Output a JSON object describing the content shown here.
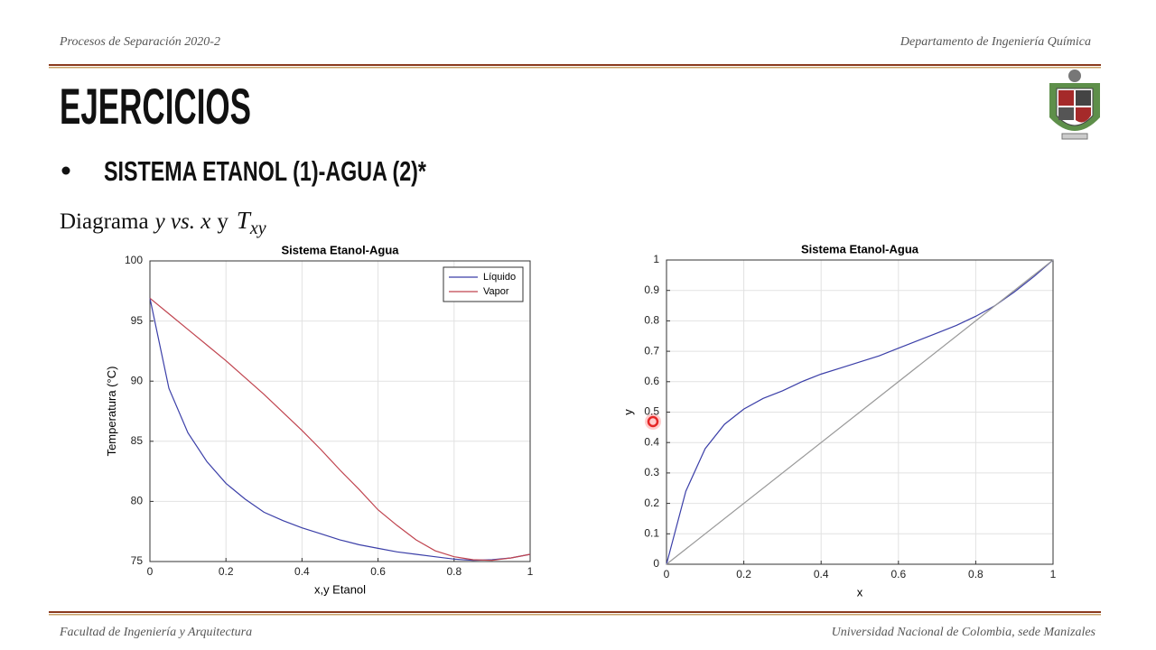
{
  "header": {
    "left": "Procesos de Separación 2020-2",
    "right": "Departamento de Ingeniería Química"
  },
  "title": "EJERCICIOS",
  "bullet": "SISTEMA ETANOL (1)-AGUA (2)*",
  "subtitle": {
    "text": "Diagrama",
    "math1": "y vs. x",
    "joiner": "y",
    "symbol": "T",
    "subscript": "xy"
  },
  "footer": {
    "left": "Facultad de Ingeniería y Arquitectura",
    "right": "Universidad Nacional de Colombia, sede Manizales"
  },
  "chart_data": [
    {
      "type": "line",
      "title": "Sistema Etanol-Agua",
      "xlabel": "x,y Etanol",
      "ylabel": "Temperatura (°C)",
      "x": [
        0,
        0.05,
        0.1,
        0.15,
        0.2,
        0.25,
        0.3,
        0.35,
        0.4,
        0.45,
        0.5,
        0.55,
        0.6,
        0.65,
        0.7,
        0.75,
        0.8,
        0.85,
        0.9,
        0.95,
        1
      ],
      "series": [
        {
          "name": "Líquido",
          "color": "#3b3fa8",
          "values": [
            96.9,
            89.4,
            85.7,
            83.3,
            81.5,
            80.2,
            79.1,
            78.4,
            77.8,
            77.3,
            76.8,
            76.4,
            76.1,
            75.8,
            75.6,
            75.4,
            75.2,
            75.1,
            75.15,
            75.3,
            75.6
          ]
        },
        {
          "name": "Vapor",
          "color": "#c0444f",
          "values": [
            96.9,
            95.6,
            94.3,
            93.0,
            91.7,
            90.3,
            88.9,
            87.4,
            85.9,
            84.3,
            82.6,
            81.0,
            79.3,
            78.0,
            76.8,
            75.9,
            75.4,
            75.15,
            75.1,
            75.3,
            75.6
          ]
        }
      ],
      "xlim": [
        0,
        1
      ],
      "xticks": [
        0,
        0.2,
        0.4,
        0.6,
        0.8,
        1
      ],
      "ylim": [
        75,
        100
      ],
      "yticks": [
        75,
        80,
        85,
        90,
        95,
        100
      ],
      "grid": true,
      "legend": "upper right"
    },
    {
      "type": "line",
      "title": "Sistema Etanol-Agua",
      "xlabel": "x",
      "ylabel": "y",
      "x": [
        0,
        0.05,
        0.1,
        0.15,
        0.2,
        0.25,
        0.3,
        0.35,
        0.4,
        0.45,
        0.5,
        0.55,
        0.6,
        0.65,
        0.7,
        0.75,
        0.8,
        0.85,
        0.9,
        0.95,
        1
      ],
      "series": [
        {
          "color": "#3b3fa8",
          "values": [
            0,
            0.24,
            0.38,
            0.46,
            0.51,
            0.545,
            0.57,
            0.6,
            0.625,
            0.645,
            0.665,
            0.685,
            0.71,
            0.735,
            0.76,
            0.785,
            0.815,
            0.85,
            0.895,
            0.945,
            1
          ]
        },
        {
          "color": "#999999",
          "x": [
            0,
            1
          ],
          "values": [
            0,
            1
          ]
        }
      ],
      "xlim": [
        0,
        1
      ],
      "xticks": [
        0,
        0.2,
        0.4,
        0.6,
        0.8,
        1
      ],
      "ylim": [
        0,
        1
      ],
      "yticks": [
        0,
        0.1,
        0.2,
        0.3,
        0.4,
        0.5,
        0.6,
        0.7,
        0.8,
        0.9,
        1
      ],
      "grid": true
    }
  ]
}
